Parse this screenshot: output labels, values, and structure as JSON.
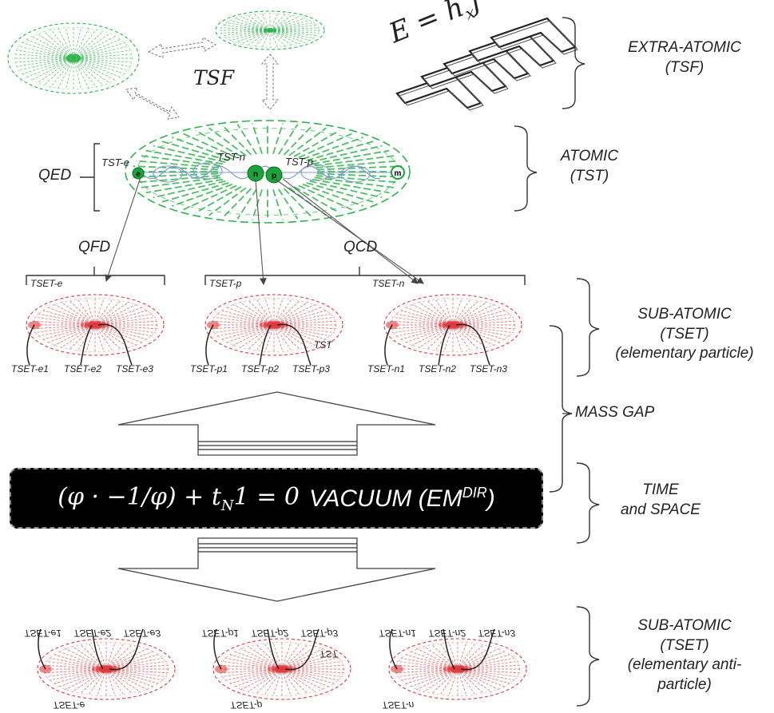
{
  "equations": {
    "energy_lhs": "E = h",
    "energy_sub": "x",
    "energy_rhs": "f",
    "vacuum_eq": "(φ · −1/φ) + t",
    "vacuum_eq_sub": "N",
    "vacuum_eq_tail": "1 = 0",
    "vacuum_label": "VACUUM (EM",
    "vacuum_sup": "DIR",
    "vacuum_close": ")"
  },
  "labels": {
    "tsf": "TSF",
    "qed": "QED",
    "qfd": "QFD",
    "qcd": "QCD",
    "tst_e": "TST-e",
    "tst_n": "TST-n",
    "tst_p": "TST-p",
    "tset_e": "TSET-e",
    "tset_p": "TSET-p",
    "tset_n": "TSET-n",
    "tst_small": "TST",
    "nucleus_e": "e",
    "nucleus_n": "n",
    "nucleus_p": "p",
    "nucleus_m": "m",
    "mass_gap": "MASS GAP"
  },
  "particles_top": {
    "e": [
      "TSET-e1",
      "TSET-e2",
      "TSET-e3"
    ],
    "p": [
      "TSET-p1",
      "TSET-p2",
      "TSET-p3"
    ],
    "n": [
      "TSET-n1",
      "TSET-n2",
      "TSET-n3"
    ]
  },
  "particles_bottom": {
    "e": [
      "TSET-e1",
      "TSET-e2",
      "TSET-e3"
    ],
    "p": [
      "TSET-p1",
      "TSET-p2",
      "TSET-p3"
    ],
    "n": [
      "TSET-n1",
      "TSET-n2",
      "TSET-n3"
    ],
    "group_e": "TSET-e",
    "group_p": "TSET-p",
    "group_n": "TSET-n",
    "tst_small": "TST"
  },
  "levels": {
    "extra_atomic": [
      "EXTRA-ATOMIC",
      "(TSF)"
    ],
    "atomic": [
      "ATOMIC",
      "(TST)"
    ],
    "sub_atomic": [
      "SUB-ATOMIC",
      "(TSET)",
      "(elementary particle)"
    ],
    "time_space": [
      "TIME",
      "and SPACE"
    ],
    "sub_atomic_anti": [
      "SUB-ATOMIC",
      "(TSET)",
      "(elementary anti-",
      "particle)"
    ]
  },
  "colors": {
    "green": "#2fb34a",
    "red": "#e0393b",
    "black": "#000000",
    "blue": "#7f9cc9"
  }
}
